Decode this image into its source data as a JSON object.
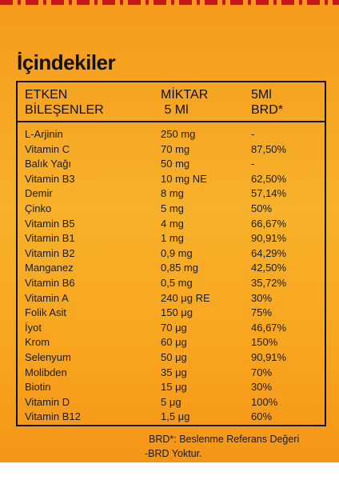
{
  "title": "İçindekiler",
  "header": {
    "col1": "ETKEN\nBİLEŞENLER",
    "col2": "MİKTAR\n 5 Ml",
    "col3": "5Ml\nBRD*"
  },
  "rows": [
    [
      "L-Arjinin",
      "250 mg",
      "-"
    ],
    [
      "Vitamin C",
      "70 mg",
      "87,50%"
    ],
    [
      "Balık Yağı",
      "50 mg",
      "-"
    ],
    [
      "Vitamin B3",
      "10 mg NE",
      "62,50%"
    ],
    [
      "Demir",
      "8 mg",
      "57,14%"
    ],
    [
      "Çinko",
      "5 mg",
      "50%"
    ],
    [
      "Vitamin B5",
      "4 mg",
      "66,67%"
    ],
    [
      "Vitamin B1",
      "1 mg",
      "90,91%"
    ],
    [
      "Vitamin B2",
      "0,9 mg",
      "64,29%"
    ],
    [
      "Manganez",
      "0,85 mg",
      "42,50%"
    ],
    [
      "Vitamin B6",
      "0,5 mg",
      "35,72%"
    ],
    [
      "Vitamin A",
      "240 μg RE",
      "30%"
    ],
    [
      "Folik Asit",
      "150 μg",
      "75%"
    ],
    [
      "İyot",
      "70 μg",
      "46,67%"
    ],
    [
      "Krom",
      "60 μg",
      "150%"
    ],
    [
      "Selenyum",
      "50 μg",
      "90,91%"
    ],
    [
      "Molibden",
      "35 μg",
      "70%"
    ],
    [
      "Biotin",
      "15 μg",
      "30%"
    ],
    [
      "Vitamin D",
      "5 μg",
      "100%"
    ],
    [
      "Vitamin B12",
      "1,5 μg",
      "60%"
    ]
  ],
  "footnote": {
    "line1": "BRD*: Beslenme Referans Değeri",
    "line2": "-BRD Yoktur."
  }
}
